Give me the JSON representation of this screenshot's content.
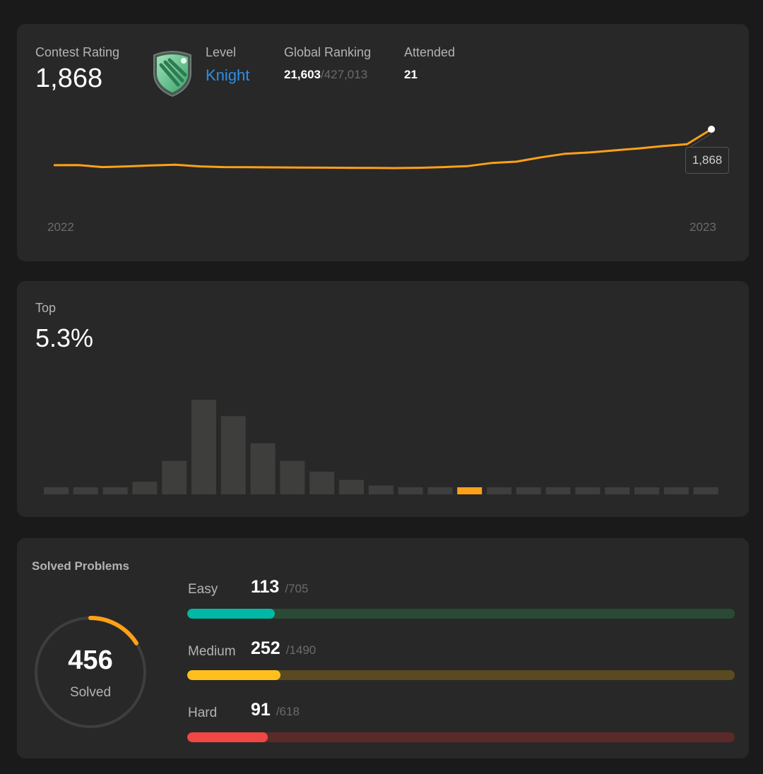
{
  "rating": {
    "label": "Contest Rating",
    "value": "1,868",
    "level_label": "Level",
    "level_value": "Knight",
    "global_ranking_label": "Global Ranking",
    "global_rank": "21,603",
    "global_total": "/427,013",
    "attended_label": "Attended",
    "attended_value": "21",
    "badge_icon": "knight-shield-icon",
    "tooltip": "1,868",
    "x_start": "2022",
    "x_end": "2023",
    "line_color": "#ffa116"
  },
  "chart_data": [
    {
      "type": "line",
      "x_labels": [
        "2022",
        "2023"
      ],
      "values": [
        1617,
        1618,
        1604,
        1609,
        1615,
        1620,
        1609,
        1604,
        1603,
        1602,
        1601,
        1600,
        1599,
        1598,
        1597,
        1599,
        1604,
        1611,
        1633,
        1642,
        1672,
        1697,
        1706,
        1720,
        1734,
        1750,
        1764,
        1868
      ],
      "series": [
        {
          "name": "",
          "values": []
        }
      ],
      "final_value": 1868
    },
    {
      "type": "bar",
      "values": [
        1,
        1,
        1,
        2,
        5.3,
        15,
        12.4,
        8.1,
        5.3,
        3.6,
        2.3,
        1.4,
        1,
        1,
        1,
        1,
        1,
        1,
        1,
        1,
        1,
        1,
        1
      ],
      "highlight_index": 14,
      "highlight_color": "#ffa116",
      "bar_color": "#3e3f3c"
    }
  ],
  "top": {
    "label": "Top",
    "value": "5.3%"
  },
  "solved": {
    "label": "Solved Problems",
    "count": "456",
    "count_label": "Solved",
    "ring_fraction": 0.16,
    "ring_color": "#ffa116",
    "difficulties": [
      {
        "name": "Easy",
        "solved": "113",
        "total": "/705",
        "fraction": 0.16,
        "fill": "#00b8a3",
        "track": "#2a4a35"
      },
      {
        "name": "Medium",
        "solved": "252",
        "total": "/1490",
        "fraction": 0.17,
        "fill": "#ffc01e",
        "track": "#5a4a22"
      },
      {
        "name": "Hard",
        "solved": "91",
        "total": "/618",
        "fraction": 0.147,
        "fill": "#ef4743",
        "track": "#5a2a28"
      }
    ]
  }
}
